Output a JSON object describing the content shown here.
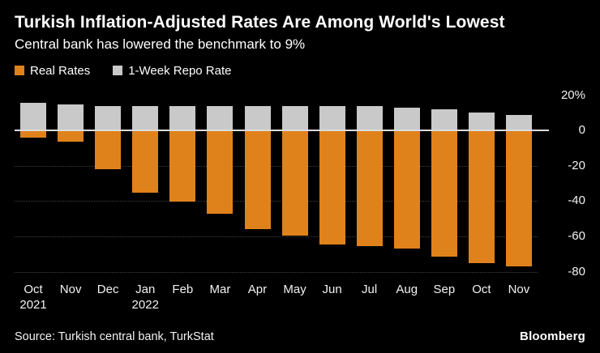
{
  "header": {
    "title": "Turkish Inflation-Adjusted Rates Are Among World's Lowest",
    "subtitle": "Central bank has lowered the benchmark to 9%"
  },
  "legend": [
    {
      "label": "Real Rates",
      "color": "#e0821b"
    },
    {
      "label": "1-Week Repo Rate",
      "color": "#c9c9c9"
    }
  ],
  "chart_data": {
    "type": "bar",
    "title": "Turkish Inflation-Adjusted Rates Are Among World's Lowest",
    "subtitle": "Central bank has lowered the benchmark to 9%",
    "unit": "%",
    "categories": [
      "Oct 2021",
      "Nov",
      "Dec",
      "Jan 2022",
      "Feb",
      "Mar",
      "Apr",
      "May",
      "Jun",
      "Jul",
      "Aug",
      "Sep",
      "Oct",
      "Nov"
    ],
    "series": [
      {
        "name": "Real Rates",
        "color": "#e0821b",
        "values": [
          -4,
          -6.5,
          -22,
          -35,
          -40.5,
          -47,
          -56,
          -59.5,
          -64.5,
          -65.5,
          -67,
          -71.5,
          -75,
          -77
        ]
      },
      {
        "name": "1-Week Repo Rate",
        "color": "#c9c9c9",
        "values": [
          16,
          15,
          14,
          14,
          14,
          14,
          14,
          14,
          14,
          14,
          13,
          12,
          10.5,
          9
        ]
      }
    ],
    "ylim": [
      -83,
      25
    ],
    "yticks": [
      20,
      0,
      -20,
      -40,
      -60,
      -80
    ],
    "ytick_labels": [
      "20%",
      "0",
      "-20",
      "-40",
      "-60",
      "-80"
    ],
    "legend_position": "top-left",
    "grid": "dotted-horizontal",
    "background": "#000000"
  },
  "footer": {
    "source": "Source:  Turkish central bank, TurkStat",
    "brand": "Bloomberg"
  }
}
